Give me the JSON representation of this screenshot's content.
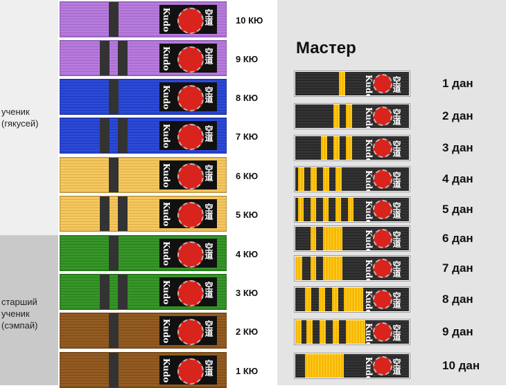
{
  "groups": {
    "student": "ученик\n(гякусей)",
    "senior": "старший\nученик\n(сэмпай)"
  },
  "master_title": "Мастер",
  "logo_text": "Kudo",
  "colors": {
    "purple": "#b273dc",
    "blue": "#1f3fd4",
    "yellow": "#f5c354",
    "green": "#2a8e1c",
    "brown": "#8c5214",
    "black": "#262626",
    "gold": "#f7b800"
  },
  "kyu": [
    {
      "label": "10 КЮ",
      "color": "purple",
      "stripes": 1
    },
    {
      "label": "9 КЮ",
      "color": "purple",
      "stripes": 2
    },
    {
      "label": "8 КЮ",
      "color": "blue",
      "stripes": 1
    },
    {
      "label": "7 КЮ",
      "color": "blue",
      "stripes": 2
    },
    {
      "label": "6 КЮ",
      "color": "yellow",
      "stripes": 1
    },
    {
      "label": "5 КЮ",
      "color": "yellow",
      "stripes": 2
    },
    {
      "label": "4 КЮ",
      "color": "green",
      "stripes": 1
    },
    {
      "label": "3 КЮ",
      "color": "green",
      "stripes": 2
    },
    {
      "label": "2 КЮ",
      "color": "brown",
      "stripes": 1
    },
    {
      "label": "1 КЮ",
      "color": "brown",
      "stripes": 1
    }
  ],
  "dan": [
    {
      "label": "1 дан"
    },
    {
      "label": "2 дан"
    },
    {
      "label": "3 дан"
    },
    {
      "label": "4 дан"
    },
    {
      "label": "5 дан"
    },
    {
      "label": "6 дан"
    },
    {
      "label": "7 дан"
    },
    {
      "label": "8 дан"
    },
    {
      "label": "9 дан"
    },
    {
      "label": "10 дан"
    }
  ]
}
